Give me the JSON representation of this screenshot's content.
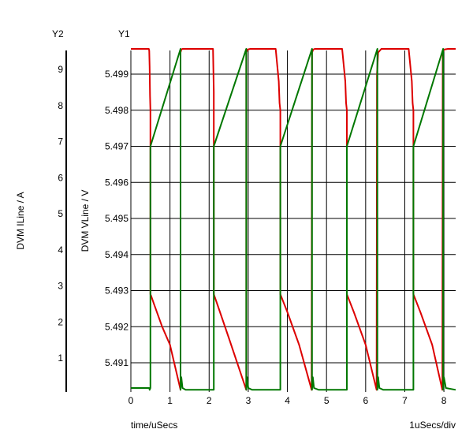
{
  "chart_data": {
    "type": "line",
    "xlabel": "time/uSecs",
    "x_scale_label": "1uSecs/div",
    "xlim": [
      0,
      8.3
    ],
    "xticks": [
      0,
      1,
      2,
      3,
      4,
      5,
      6,
      7,
      8
    ],
    "axes": {
      "y2": {
        "title": "Y2",
        "label": "DVM ILine / A",
        "ticks": [
          1,
          2,
          3,
          4,
          5,
          6,
          7,
          8,
          9
        ]
      },
      "y1": {
        "title": "Y1",
        "label": "DVM VLine / V",
        "ticks": [
          5.491,
          5.492,
          5.493,
          5.494,
          5.495,
          5.496,
          5.497,
          5.498,
          5.499
        ]
      }
    },
    "grid": true,
    "series": [
      {
        "color": "#dd0000",
        "axis": "y2",
        "x": [
          0,
          0.46,
          0.47,
          0.48,
          0.49,
          0.5,
          0.5,
          0.52,
          0.6,
          0.8,
          1.0,
          1.27,
          1.27,
          1.29,
          1.32,
          1.4,
          1.5,
          2.1,
          2.12,
          2.12,
          2.2,
          2.5,
          2.95,
          2.95,
          2.98,
          3.05,
          3.2,
          3.7,
          3.78,
          3.8,
          3.82,
          3.82,
          4.0,
          4.3,
          4.62,
          4.63,
          4.66,
          4.7,
          4.8,
          5.4,
          5.48,
          5.5,
          5.52,
          5.52,
          5.7,
          6.0,
          6.28,
          6.29,
          6.32,
          6.4,
          6.5,
          7.1,
          7.18,
          7.2,
          7.22,
          7.22,
          7.4,
          7.7,
          7.96,
          7.97,
          8.0,
          8.1,
          8.3
        ],
        "y": [
          9.7,
          9.7,
          9.65,
          9.2,
          8.4,
          8.0,
          2.9,
          2.85,
          2.6,
          2.0,
          1.5,
          0.25,
          9.6,
          9.68,
          9.7,
          9.7,
          9.7,
          9.7,
          8.5,
          2.9,
          2.65,
          1.7,
          0.25,
          9.6,
          9.68,
          9.7,
          9.7,
          9.7,
          8.8,
          8.2,
          8.0,
          2.9,
          2.4,
          1.5,
          0.25,
          9.6,
          9.68,
          9.7,
          9.7,
          9.7,
          8.8,
          8.2,
          8.0,
          2.9,
          2.4,
          1.5,
          0.25,
          9.0,
          9.6,
          9.7,
          9.7,
          9.7,
          8.8,
          8.2,
          8.0,
          2.9,
          2.4,
          1.5,
          0.25,
          9.6,
          9.68,
          9.7,
          9.7
        ]
      },
      {
        "color": "#007700",
        "axis": "y2",
        "x": [
          0,
          0.47,
          0.48,
          0.5,
          0.5,
          1.27,
          1.27,
          1.29,
          1.32,
          1.4,
          2.12,
          2.12,
          2.95,
          2.95,
          2.97,
          3.0,
          3.1,
          3.82,
          3.82,
          4.63,
          4.63,
          4.65,
          4.68,
          4.8,
          5.52,
          5.52,
          6.3,
          6.3,
          6.32,
          6.35,
          6.45,
          7.22,
          7.22,
          7.98,
          7.98,
          8.0,
          8.05,
          8.3
        ],
        "y": [
          0.3,
          0.3,
          0.25,
          0.3,
          7.0,
          9.7,
          0.25,
          0.6,
          0.3,
          0.25,
          0.25,
          7.0,
          9.7,
          0.25,
          0.6,
          0.3,
          0.25,
          0.25,
          7.0,
          9.7,
          0.25,
          0.6,
          0.3,
          0.25,
          0.25,
          7.0,
          9.7,
          0.25,
          0.6,
          0.3,
          0.25,
          0.25,
          7.0,
          9.7,
          0.25,
          0.6,
          0.3,
          0.25
        ]
      }
    ]
  }
}
